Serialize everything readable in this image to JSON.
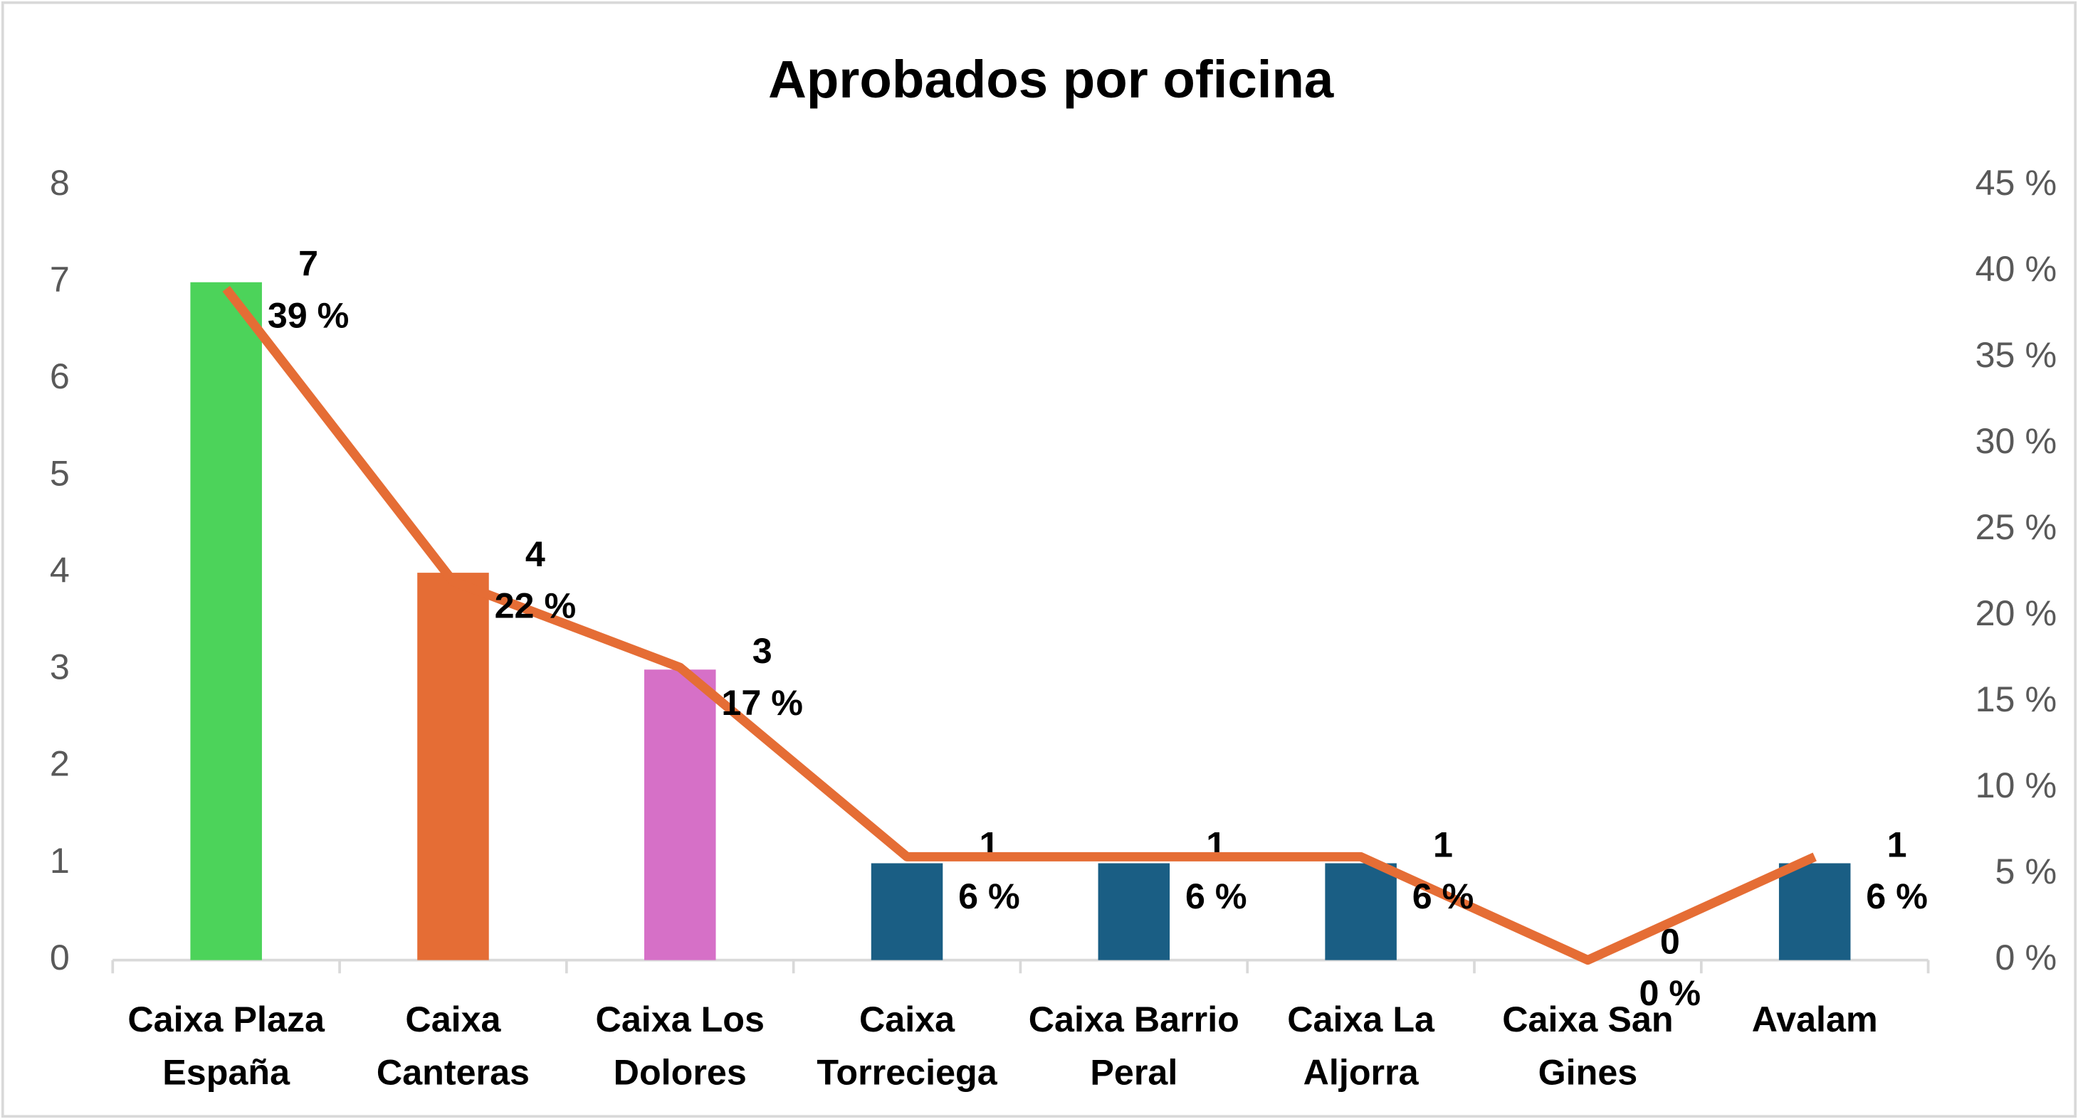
{
  "chart_data": {
    "type": "combo",
    "title": "Aprobados por oficina",
    "categories": [
      "Caixa Plaza España",
      "Caixa Canteras",
      "Caixa Los Dolores",
      "Caixa Torreciega",
      "Caixa Barrio Peral",
      "Caixa La Aljorra",
      "Caixa San Gines",
      "Avalam"
    ],
    "series": [
      {
        "type": "bar",
        "colors": [
          "#4cd35a",
          "#e56d35",
          "#d670c7",
          "#1a5e84",
          "#1a5e84",
          "#1a5e84",
          "#1a5e84",
          "#1a5e84"
        ],
        "values": [
          7,
          4,
          3,
          1,
          1,
          1,
          0,
          1
        ]
      },
      {
        "type": "line",
        "axis": "y2",
        "color": "#e56d35",
        "values": [
          39,
          22,
          17,
          6,
          6,
          6,
          0,
          6
        ],
        "value_labels": [
          "39 %",
          "22 %",
          "17 %",
          "6 %",
          "6 %",
          "6 %",
          "0 %",
          "6 %"
        ]
      }
    ],
    "ylim": [
      0,
      8
    ],
    "yticks": [
      0,
      1,
      2,
      3,
      4,
      5,
      6,
      7,
      8
    ],
    "y2lim": [
      0,
      45
    ],
    "y2ticks": [
      {
        "value": 0,
        "label": "0 %"
      },
      {
        "value": 5,
        "label": "5 %"
      },
      {
        "value": 10,
        "label": "10 %"
      },
      {
        "value": 15,
        "label": "15 %"
      },
      {
        "value": 20,
        "label": "20 %"
      },
      {
        "value": 25,
        "label": "25 %"
      },
      {
        "value": 30,
        "label": "30 %"
      },
      {
        "value": 35,
        "label": "35 %"
      },
      {
        "value": 40,
        "label": "40 %"
      },
      {
        "value": 45,
        "label": "45 %"
      }
    ],
    "grid": false
  }
}
